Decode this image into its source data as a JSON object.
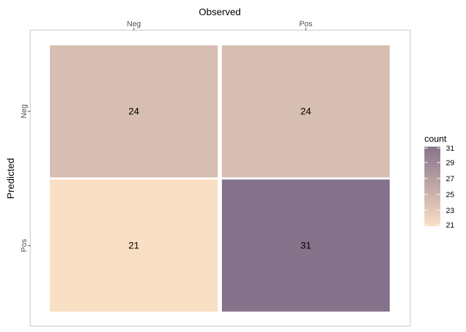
{
  "chart_data": {
    "type": "heatmap",
    "title": "",
    "xlabel": "Observed",
    "ylabel": "Predicted",
    "x_categories": [
      "Neg",
      "Pos"
    ],
    "y_categories": [
      "Neg",
      "Pos"
    ],
    "x_axis_position": "top",
    "cells": [
      {
        "x": "Neg",
        "y": "Neg",
        "value": 24,
        "label": "24"
      },
      {
        "x": "Pos",
        "y": "Neg",
        "value": 24,
        "label": "24"
      },
      {
        "x": "Neg",
        "y": "Pos",
        "value": 21,
        "label": "21"
      },
      {
        "x": "Pos",
        "y": "Pos",
        "value": 31,
        "label": "31"
      }
    ],
    "legend": {
      "title": "count",
      "position": "right",
      "range": [
        21,
        31
      ],
      "ticks": [
        "21",
        "23",
        "25",
        "27",
        "29",
        "31"
      ],
      "low_color": "#f9dfc3",
      "high_color": "#86728a"
    },
    "grid": false
  }
}
